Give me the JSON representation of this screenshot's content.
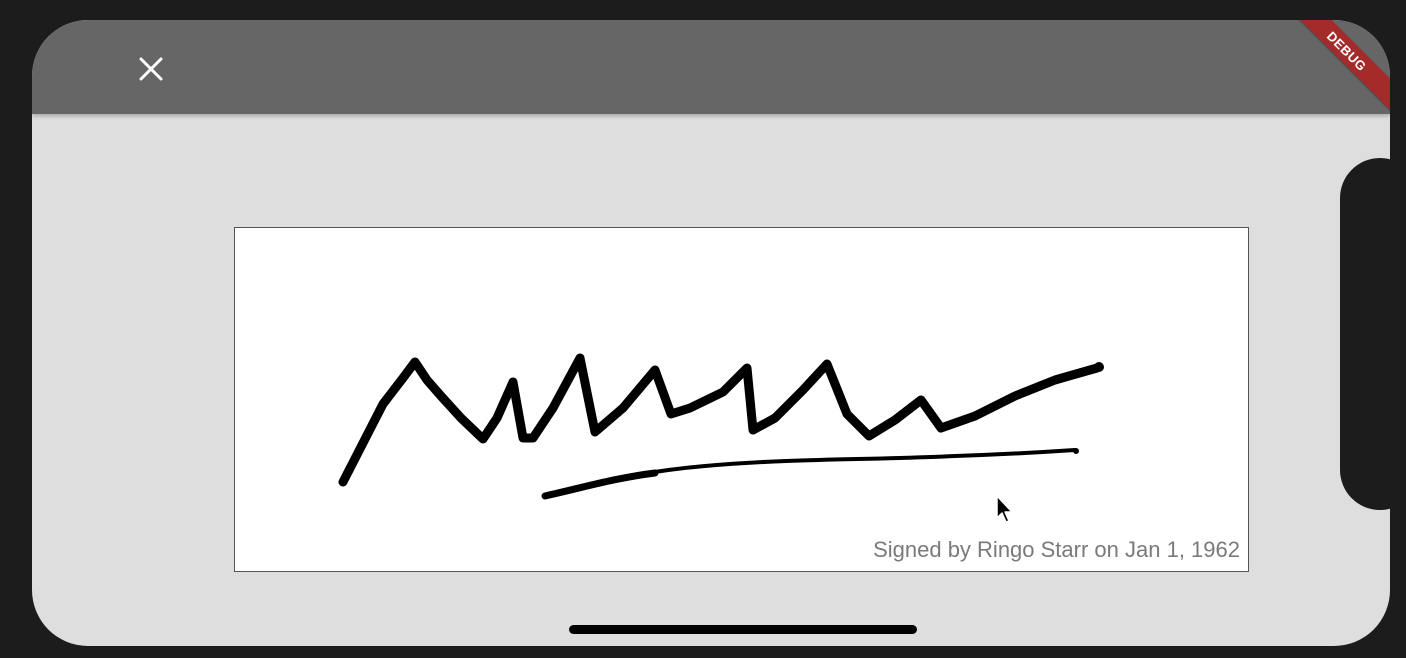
{
  "app_bar": {
    "close_icon": "close-icon",
    "close_glyph": "✕"
  },
  "debug_banner": {
    "label": "DEBUG",
    "color": "#a52b2b"
  },
  "signature": {
    "caption": "Signed by Ringo Starr on Jan 1, 1962",
    "stroke_color": "#000000"
  },
  "colors": {
    "app_bar": "#666666",
    "background": "#dedede",
    "card": "#ffffff"
  }
}
